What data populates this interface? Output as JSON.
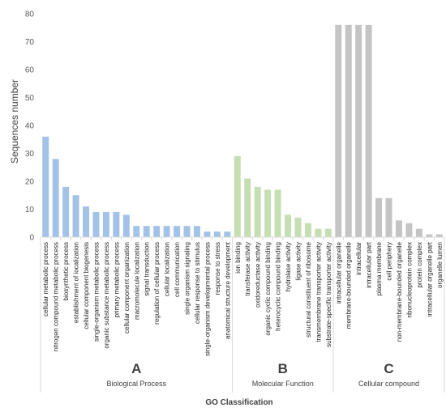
{
  "chart_data": {
    "type": "bar",
    "ylabel": "Sequences number",
    "xlabel": "GO Classification",
    "ylim": [
      0,
      80
    ],
    "yticks": [
      0,
      10,
      20,
      30,
      40,
      50,
      60,
      70,
      80
    ],
    "grid": false,
    "groups": [
      {
        "letter": "A",
        "name": "Biological Process",
        "color": "#a3c2e8",
        "categories": [
          "cellular metabolic process",
          "nitrogen compound metabolic process",
          "biosynthetic process",
          "establishment of localization",
          "cellular component biogenesis",
          "single-organism metabolic process",
          "organic substance metabolic process",
          "primary metabolic process",
          "cellular component organization",
          "macromolecule localization",
          "signal transduction",
          "regulation of cellular process",
          "cellular localization",
          "cell communication",
          "single organism signaling",
          "cellular response to stimulus",
          "single-organism developmental process",
          "response to stress",
          "anatomical structure development"
        ],
        "values": [
          36,
          28,
          18,
          15,
          11,
          9,
          9,
          9,
          8,
          4,
          4,
          4,
          4,
          4,
          4,
          4,
          2,
          2,
          2
        ]
      },
      {
        "letter": "B",
        "name": "Molecular Function",
        "color": "#c5deb2",
        "categories": [
          "ion binding",
          "transferase activity",
          "oxidoreductase activity",
          "organic cyclic compound binding",
          "heterocyclic compound binding",
          "hydrolase activity",
          "ligase activity",
          "structural constituent of ribosome",
          "transmembrane transporter activity",
          "substrate-specific transporter activity"
        ],
        "values": [
          29,
          21,
          18,
          17,
          17,
          8,
          7,
          5,
          3,
          3
        ]
      },
      {
        "letter": "C",
        "name": "Cellular compound",
        "color": "#c4c4c4",
        "categories": [
          "intracellular organelle",
          "membrane-bounded organelle",
          "intracellular",
          "intracellular part",
          "plasma membrane",
          "cell periphery",
          "non-membrane-bounded organelle",
          "ribonucleoprotein complex",
          "protein complex",
          "intracellular organelle part",
          "organelle lumen"
        ],
        "values": [
          76,
          76,
          76,
          76,
          14,
          14,
          6,
          5,
          3,
          1,
          1
        ]
      }
    ]
  }
}
